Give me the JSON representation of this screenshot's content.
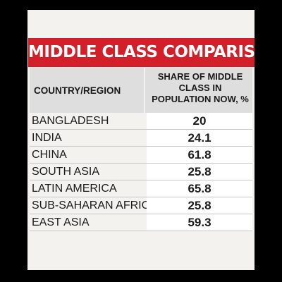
{
  "title": "MIDDLE CLASS COMPARISONS",
  "colors": {
    "title_bar": "#d31f29",
    "header_bg": "#dedede",
    "card_bg": "#f4f2ef",
    "page_bg": "#000000"
  },
  "chart_data": {
    "type": "table",
    "title": "MIDDLE CLASS COMPARISONS",
    "columns": [
      "COUNTRY/REGION",
      "SHARE OF MIDDLE CLASS IN POPULATION NOW, %"
    ],
    "header_right_lines": [
      "SHARE OF MIDDLE",
      "CLASS IN",
      "POPULATION NOW, %"
    ],
    "rows": [
      {
        "region": "BANGLADESH",
        "value": "20"
      },
      {
        "region": "INDIA",
        "value": "24.1"
      },
      {
        "region": "CHINA",
        "value": "61.8"
      },
      {
        "region": "SOUTH ASIA",
        "value": "25.8"
      },
      {
        "region": "LATIN AMERICA",
        "value": "65.8"
      },
      {
        "region": "SUB-SAHARAN AFRICA",
        "value": "25.8"
      },
      {
        "region": "EAST ASIA",
        "value": "59.3"
      }
    ]
  }
}
